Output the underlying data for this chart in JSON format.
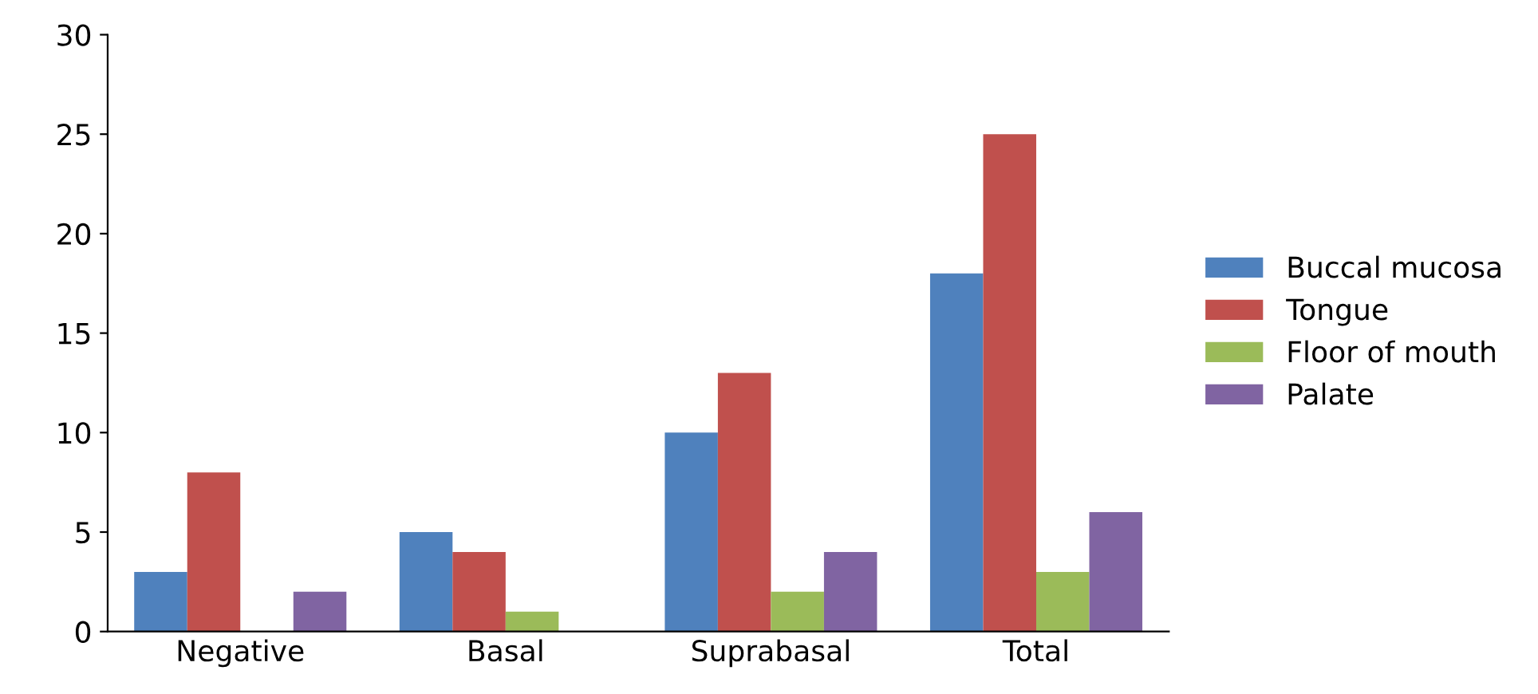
{
  "chart_data": {
    "type": "bar",
    "categories": [
      "Negative",
      "Basal",
      "Suprabasal",
      "Total"
    ],
    "series": [
      {
        "name": "Buccal mucosa",
        "color": "#4f81bd",
        "values": [
          3,
          5,
          10,
          18
        ]
      },
      {
        "name": "Tongue",
        "color": "#c0504d",
        "values": [
          8,
          4,
          13,
          25
        ]
      },
      {
        "name": "Floor of mouth",
        "color": "#9bbb59",
        "values": [
          0,
          1,
          2,
          3
        ]
      },
      {
        "name": "Palate",
        "color": "#8064a2",
        "values": [
          2,
          0,
          4,
          6
        ]
      }
    ],
    "ylim": [
      0,
      30
    ],
    "yticks": [
      0,
      5,
      10,
      15,
      20,
      25,
      30
    ],
    "grid": false,
    "legend": "right"
  }
}
